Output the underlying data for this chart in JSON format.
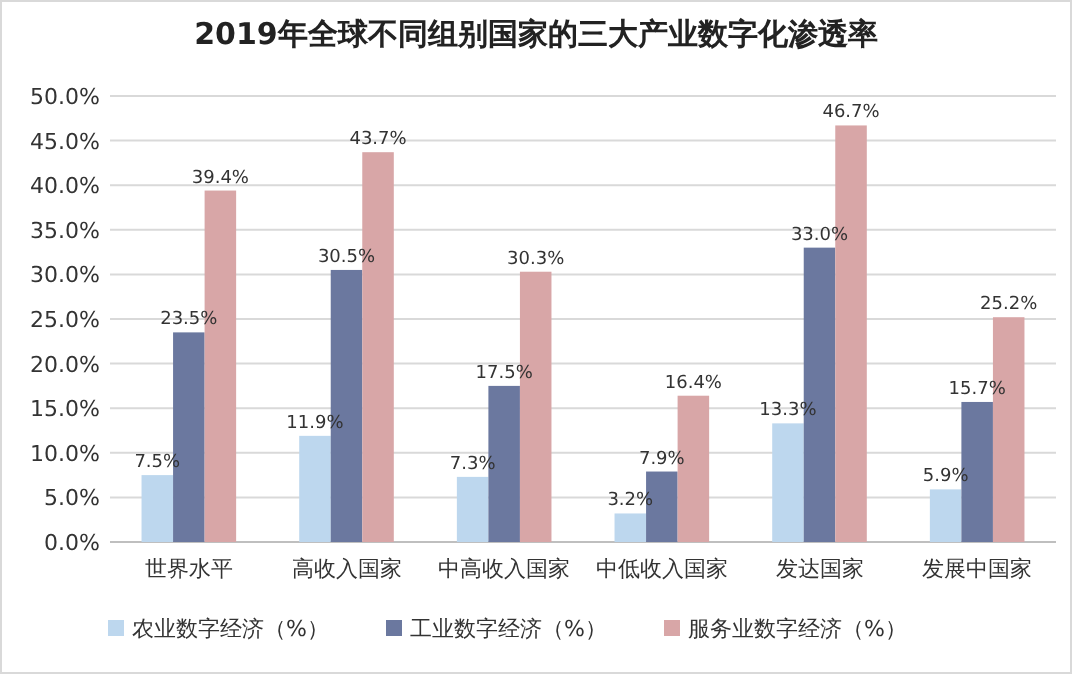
{
  "chart_data": {
    "type": "bar",
    "title": "2019年全球不同组别国家的三大产业数字化渗透率",
    "categories": [
      "世界水平",
      "高收入国家",
      "中高收入国家",
      "中低收入国家",
      "发达国家",
      "发展中国家"
    ],
    "series": [
      {
        "name": "农业数字经济（%）",
        "color": "#bdd7ee",
        "values": [
          7.5,
          11.9,
          7.3,
          3.2,
          13.3,
          5.9
        ],
        "value_labels": [
          "7.5%",
          "11.9%",
          "7.3%",
          "3.2%",
          "13.3%",
          "5.9%"
        ]
      },
      {
        "name": "工业数字经济（%）",
        "color": "#6b789f",
        "values": [
          23.5,
          30.5,
          17.5,
          7.9,
          33.0,
          15.7
        ],
        "value_labels": [
          "23.5%",
          "30.5%",
          "17.5%",
          "7.9%",
          "33.0%",
          "15.7%"
        ]
      },
      {
        "name": "服务业数字经济（%）",
        "color": "#d8a6a7",
        "values": [
          39.4,
          43.7,
          30.3,
          16.4,
          46.7,
          25.2
        ],
        "value_labels": [
          "39.4%",
          "43.7%",
          "30.3%",
          "16.4%",
          "46.7%",
          "25.2%"
        ]
      }
    ],
    "ylim": [
      0,
      50
    ],
    "yticks": [
      {
        "value": 0,
        "label": "0.0%"
      },
      {
        "value": 5,
        "label": "5.0%"
      },
      {
        "value": 10,
        "label": "10.0%"
      },
      {
        "value": 15,
        "label": "15.0%"
      },
      {
        "value": 20,
        "label": "20.0%"
      },
      {
        "value": 25,
        "label": "25.0%"
      },
      {
        "value": 30,
        "label": "30.0%"
      },
      {
        "value": 35,
        "label": "35.0%"
      },
      {
        "value": 40,
        "label": "40.0%"
      },
      {
        "value": 45,
        "label": "45.0%"
      },
      {
        "value": 50,
        "label": "50.0%"
      }
    ],
    "grid": "y",
    "legend": "bottom"
  }
}
